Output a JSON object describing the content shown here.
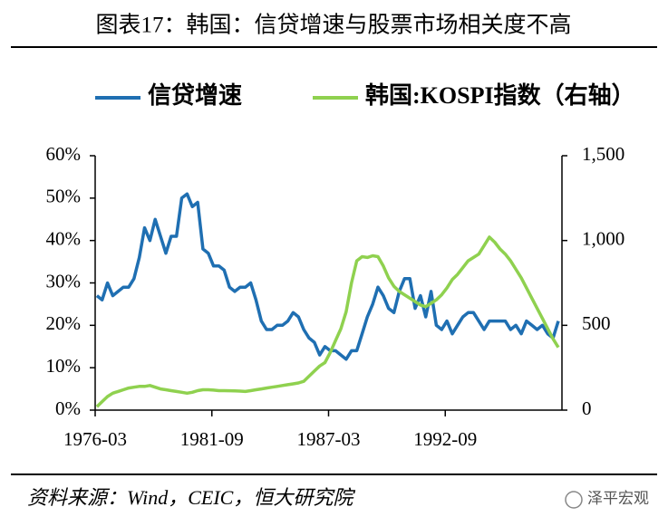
{
  "chart_data": {
    "type": "line",
    "title": "图表17：韩国：信贷增速与股票市场相关度不高",
    "source": "资料来源：Wind，CEIC，恒大研究院",
    "watermark": "泽平宏观",
    "x": [
      1976.25,
      1976.5,
      1976.75,
      1977,
      1977.25,
      1977.5,
      1977.75,
      1978,
      1978.25,
      1978.5,
      1978.75,
      1979,
      1979.25,
      1979.5,
      1979.75,
      1980,
      1980.25,
      1980.5,
      1980.75,
      1981,
      1981.25,
      1981.5,
      1981.75,
      1982,
      1982.25,
      1982.5,
      1982.75,
      1983,
      1983.25,
      1983.5,
      1983.75,
      1984,
      1984.25,
      1984.5,
      1984.75,
      1985,
      1985.25,
      1985.5,
      1985.75,
      1986,
      1986.25,
      1986.5,
      1986.75,
      1987,
      1987.25,
      1987.5,
      1987.75,
      1988,
      1988.25,
      1988.5,
      1988.75,
      1989,
      1989.25,
      1989.5,
      1989.75,
      1990,
      1990.25,
      1990.5,
      1990.75,
      1991,
      1991.25,
      1991.5,
      1991.75,
      1992,
      1992.25,
      1992.5,
      1992.75,
      1993,
      1993.25,
      1993.5,
      1993.75,
      1994,
      1994.25,
      1994.5,
      1994.75,
      1995,
      1995.25,
      1995.5,
      1995.75,
      1996,
      1996.25,
      1996.5,
      1996.75,
      1997,
      1997.25,
      1997.5,
      1997.75,
      1998
    ],
    "series": [
      {
        "name": "信贷增速",
        "color": "#1f6fb2",
        "axis": "y",
        "values": [
          27,
          26,
          30,
          27,
          28,
          29,
          29,
          31,
          36,
          43,
          40,
          45,
          41,
          37,
          41,
          41,
          50,
          51,
          48,
          49,
          38,
          37,
          34,
          34,
          33,
          29,
          28,
          29,
          29,
          30,
          26,
          21,
          19,
          19,
          20,
          20,
          21,
          23,
          22,
          19,
          17,
          16,
          13,
          15,
          14,
          14,
          13,
          12,
          14,
          14,
          18,
          22,
          25,
          29,
          27,
          24,
          23,
          28,
          31,
          31,
          24,
          27,
          22,
          28,
          20,
          19,
          21,
          18,
          20,
          22,
          23,
          23,
          21,
          19,
          21,
          21,
          21,
          21,
          19,
          20,
          18,
          21,
          20,
          19,
          20,
          18,
          17,
          21
        ]
      },
      {
        "name": "韩国:KOSPI指数（右轴）",
        "color": "#8fd14f",
        "axis": "y2",
        "values": [
          20,
          50,
          80,
          100,
          110,
          120,
          130,
          135,
          140,
          140,
          145,
          135,
          125,
          120,
          115,
          110,
          105,
          100,
          105,
          115,
          120,
          120,
          118,
          115,
          115,
          114,
          113,
          112,
          110,
          115,
          120,
          125,
          130,
          135,
          140,
          145,
          150,
          155,
          160,
          170,
          200,
          230,
          260,
          280,
          340,
          410,
          480,
          580,
          750,
          880,
          905,
          900,
          910,
          905,
          850,
          780,
          730,
          700,
          680,
          660,
          640,
          620,
          610,
          630,
          650,
          680,
          720,
          770,
          800,
          840,
          880,
          900,
          920,
          970,
          1020,
          990,
          950,
          920,
          880,
          830,
          780,
          720,
          660,
          600,
          540,
          480,
          420,
          370
        ]
      }
    ],
    "xlim": [
      1976.17,
      1998.17
    ],
    "xticks": [
      {
        "value": 1976.17,
        "label": "1976-03"
      },
      {
        "value": 1981.67,
        "label": "1981-09"
      },
      {
        "value": 1987.17,
        "label": "1987-03"
      },
      {
        "value": 1992.67,
        "label": "1992-09"
      }
    ],
    "ylim": [
      0,
      60
    ],
    "yticks": [
      {
        "value": 0,
        "label": "0%"
      },
      {
        "value": 10,
        "label": "10%"
      },
      {
        "value": 20,
        "label": "20%"
      },
      {
        "value": 30,
        "label": "30%"
      },
      {
        "value": 40,
        "label": "40%"
      },
      {
        "value": 50,
        "label": "50%"
      },
      {
        "value": 60,
        "label": "60%"
      }
    ],
    "y2lim": [
      0,
      1500
    ],
    "y2ticks": [
      0,
      500,
      {
        "value": 1000,
        "label": "1,000"
      },
      {
        "value": 1500,
        "label": "1,500"
      }
    ],
    "grid": false
  }
}
